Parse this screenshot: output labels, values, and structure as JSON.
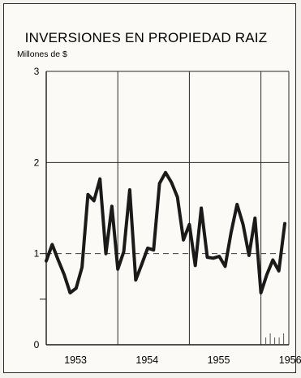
{
  "chart_data": {
    "type": "line",
    "title": "INVERSIONES EN PROPIEDAD RAIZ",
    "ylabel": "Millones de $",
    "xlabel": "",
    "ylim": [
      0,
      3
    ],
    "yticks": [
      0,
      1,
      2,
      3
    ],
    "year_labels": [
      "1953",
      "1954",
      "1955",
      "1956"
    ],
    "grid": true,
    "reference_line_y": 1,
    "series": [
      {
        "x": [
          1953.0,
          1953.083,
          1953.167,
          1953.25,
          1953.333,
          1953.417,
          1953.5,
          1953.583,
          1953.667,
          1953.75,
          1953.833,
          1953.917,
          1954.0,
          1954.083,
          1954.167,
          1954.25,
          1954.333,
          1954.417,
          1954.5,
          1954.583,
          1954.667,
          1954.75,
          1954.833,
          1954.917,
          1955.0,
          1955.083,
          1955.167,
          1955.25,
          1955.333,
          1955.417,
          1955.5,
          1955.583,
          1955.667,
          1955.75,
          1955.833,
          1955.917,
          1956.0,
          1956.083,
          1956.167,
          1956.25,
          1956.333
        ],
        "values": [
          0.92,
          1.1,
          0.93,
          0.77,
          0.57,
          0.62,
          0.85,
          1.65,
          1.58,
          1.82,
          1.0,
          1.52,
          0.83,
          1.02,
          1.7,
          0.71,
          0.88,
          1.06,
          1.04,
          1.77,
          1.89,
          1.78,
          1.62,
          1.15,
          1.32,
          0.87,
          1.5,
          0.96,
          0.95,
          0.97,
          0.86,
          1.23,
          1.54,
          1.32,
          0.98,
          1.39,
          0.57,
          0.77,
          0.93,
          0.81,
          1.33
        ]
      }
    ]
  }
}
